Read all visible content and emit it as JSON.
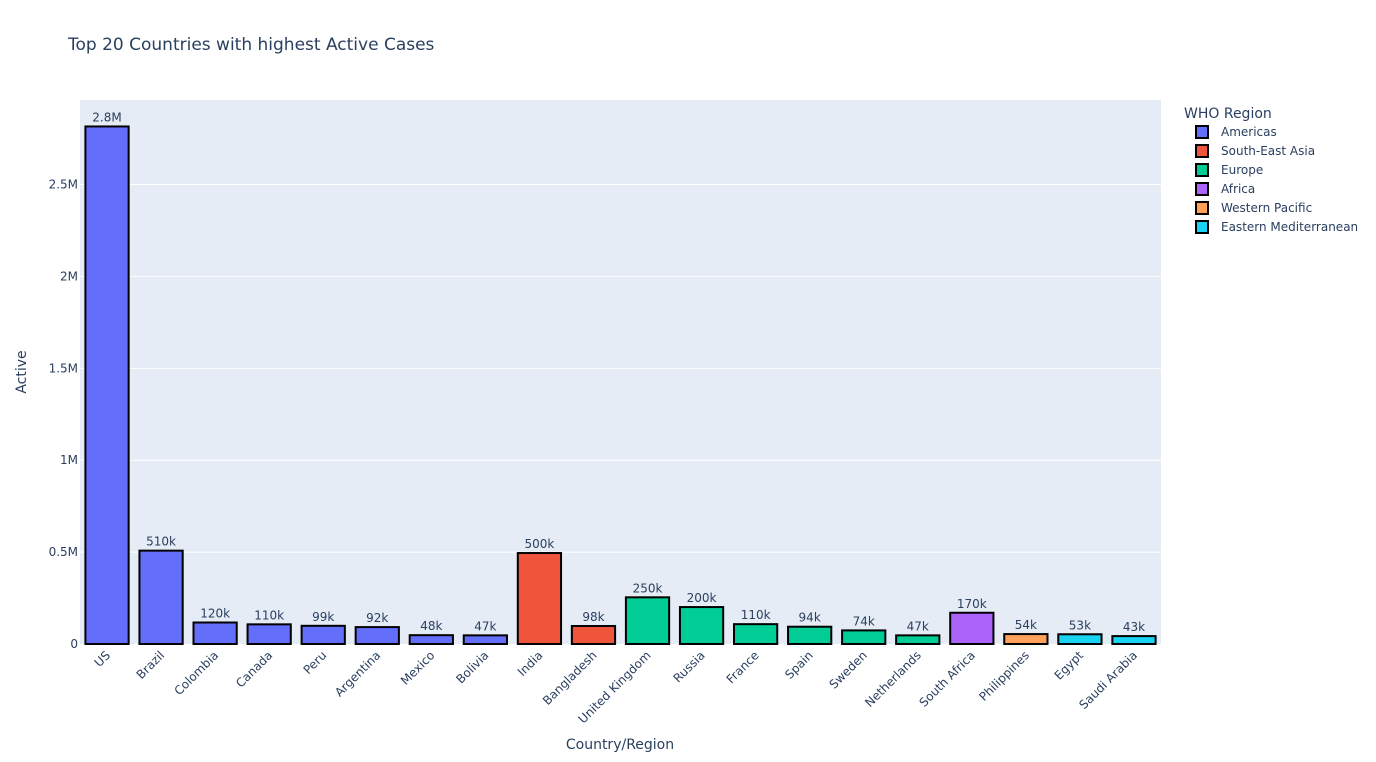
{
  "chart_data": {
    "type": "bar",
    "title": "Top 20 Countries with highest Active Cases",
    "xlabel": "Country/Region",
    "ylabel": "Active",
    "ylim": [
      0,
      2960000
    ],
    "yticks": [
      {
        "value": 0,
        "label": "0"
      },
      {
        "value": 500000,
        "label": "0.5M"
      },
      {
        "value": 1000000,
        "label": "1M"
      },
      {
        "value": 1500000,
        "label": "1.5M"
      },
      {
        "value": 2000000,
        "label": "2M"
      },
      {
        "value": 2500000,
        "label": "2.5M"
      }
    ],
    "grid": true,
    "legend": {
      "title": "WHO Region",
      "placement": "top-right",
      "items": [
        {
          "name": "Americas",
          "color": "#636efa"
        },
        {
          "name": "South-East Asia",
          "color": "#ef553b"
        },
        {
          "name": "Europe",
          "color": "#00cc96"
        },
        {
          "name": "Africa",
          "color": "#ab63fa"
        },
        {
          "name": "Western Pacific",
          "color": "#ffa15a"
        },
        {
          "name": "Eastern Mediterranean",
          "color": "#19d3f3"
        }
      ]
    },
    "bars": [
      {
        "category": "US",
        "value": 2816000,
        "label": "2.8M",
        "region": "Americas"
      },
      {
        "category": "Brazil",
        "value": 508000,
        "label": "510k",
        "region": "Americas"
      },
      {
        "category": "Colombia",
        "value": 117000,
        "label": "120k",
        "region": "Americas"
      },
      {
        "category": "Canada",
        "value": 107000,
        "label": "110k",
        "region": "Americas"
      },
      {
        "category": "Peru",
        "value": 99000,
        "label": "99k",
        "region": "Americas"
      },
      {
        "category": "Argentina",
        "value": 92000,
        "label": "92k",
        "region": "Americas"
      },
      {
        "category": "Mexico",
        "value": 48000,
        "label": "48k",
        "region": "Americas"
      },
      {
        "category": "Bolivia",
        "value": 47000,
        "label": "47k",
        "region": "Americas"
      },
      {
        "category": "India",
        "value": 495000,
        "label": "500k",
        "region": "South-East Asia"
      },
      {
        "category": "Bangladesh",
        "value": 98000,
        "label": "98k",
        "region": "South-East Asia"
      },
      {
        "category": "United Kingdom",
        "value": 254000,
        "label": "250k",
        "region": "Europe"
      },
      {
        "category": "Russia",
        "value": 201000,
        "label": "200k",
        "region": "Europe"
      },
      {
        "category": "France",
        "value": 108000,
        "label": "110k",
        "region": "Europe"
      },
      {
        "category": "Spain",
        "value": 94000,
        "label": "94k",
        "region": "Europe"
      },
      {
        "category": "Sweden",
        "value": 74000,
        "label": "74k",
        "region": "Europe"
      },
      {
        "category": "Netherlands",
        "value": 47000,
        "label": "47k",
        "region": "Europe"
      },
      {
        "category": "South Africa",
        "value": 170000,
        "label": "170k",
        "region": "Africa"
      },
      {
        "category": "Philippines",
        "value": 54000,
        "label": "54k",
        "region": "Western Pacific"
      },
      {
        "category": "Egypt",
        "value": 53000,
        "label": "53k",
        "region": "Eastern Mediterranean"
      },
      {
        "category": "Saudi Arabia",
        "value": 43000,
        "label": "43k",
        "region": "Eastern Mediterranean"
      }
    ],
    "colors": {
      "plot_background": "#e5ecf6",
      "gridline": "#ffffff",
      "bar_outline": "#000000",
      "text": "#2a3f5f"
    }
  }
}
